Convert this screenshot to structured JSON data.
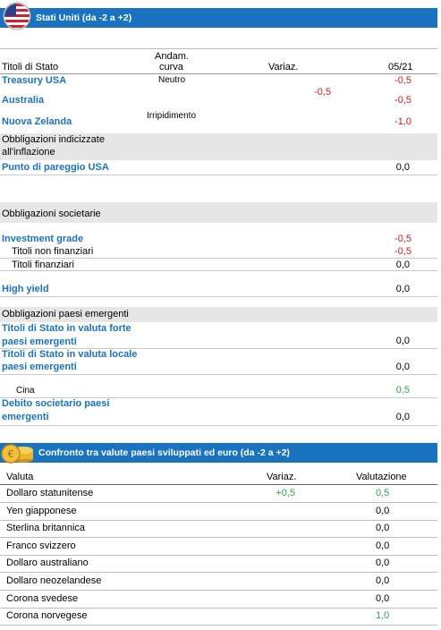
{
  "section1": {
    "title": "Stati Uniti (da -2 a +2)",
    "headers": {
      "col1": "Titoli di Stato",
      "col2_line1": "Andam.",
      "col2_line2": "curva",
      "col3": "Variaz.",
      "col4": "05/21"
    },
    "gov": [
      {
        "name": "Treasury USA",
        "curve": "Neutro",
        "value": "-0,5"
      },
      {
        "name": "Australia",
        "value": "-0,5"
      },
      {
        "name": "Nuova Zelanda",
        "curve": "Irripidimento",
        "value": "-1,0"
      }
    ],
    "gov_change": "-0,5",
    "inflation": {
      "header_line1": "Obbligazioni indicizzate",
      "header_line2": "all'inflazione",
      "name": "Punto di pareggio USA",
      "value": "0,0"
    },
    "corporate": {
      "header": "Obbligazioni societarie",
      "ig_name": "Investment grade",
      "ig_value": "-0,5",
      "nonfin_name": "Titoli non finanziari",
      "nonfin_value": "-0,5",
      "fin_name": "Titoli finanziari",
      "fin_value": "0,0",
      "hy_name": "High yield",
      "hy_value": "0,0"
    },
    "emerging": {
      "header": "Obbligazioni paesi emergenti",
      "hard_line1": "Titoli di Stato in valuta forte",
      "hard_line2": "paesi emergenti",
      "hard_value": "0,0",
      "local_line1": "Titoli di Stato in valuta locale",
      "local_line2": "paesi emergenti",
      "local_value": "0,0",
      "china_name": "Cina",
      "china_value": "0,5",
      "corp_line1": "Debito societario paesi",
      "corp_line2": "emergenti",
      "corp_value": "0,0"
    }
  },
  "section2": {
    "title": "Confronto tra valute paesi sviluppati ed euro (da -2 a +2)",
    "headers": {
      "col1": "Valuta",
      "col2": "Variaz.",
      "col3": "Valutazione"
    },
    "rows": [
      {
        "name": "Dollaro statunitense",
        "change": "+0,5",
        "value": "0,5",
        "value_color": "green"
      },
      {
        "name": "Yen giapponese",
        "change": "",
        "value": "0,0",
        "value_color": "black"
      },
      {
        "name": "Sterlina britannica",
        "change": "",
        "value": "0,0",
        "value_color": "black"
      },
      {
        "name": "Franco svizzero",
        "change": "",
        "value": "0,0",
        "value_color": "black"
      },
      {
        "name": "Dollaro australiano",
        "change": "",
        "value": "0,0",
        "value_color": "black"
      },
      {
        "name": "Dollaro neozelandese",
        "change": "",
        "value": "0,0",
        "value_color": "black"
      },
      {
        "name": "Corona svedese",
        "change": "",
        "value": "0,0",
        "value_color": "black"
      },
      {
        "name": "Corona norvegese",
        "change": "",
        "value": "1,0",
        "value_color": "green"
      }
    ]
  },
  "icons": {
    "section1": "us-flag-icon",
    "section2": "coins-icon"
  },
  "colors": {
    "blue": "#1a73c1",
    "red": "#e0141e",
    "green": "#2ba84a",
    "gray": "#e6e6e6"
  }
}
